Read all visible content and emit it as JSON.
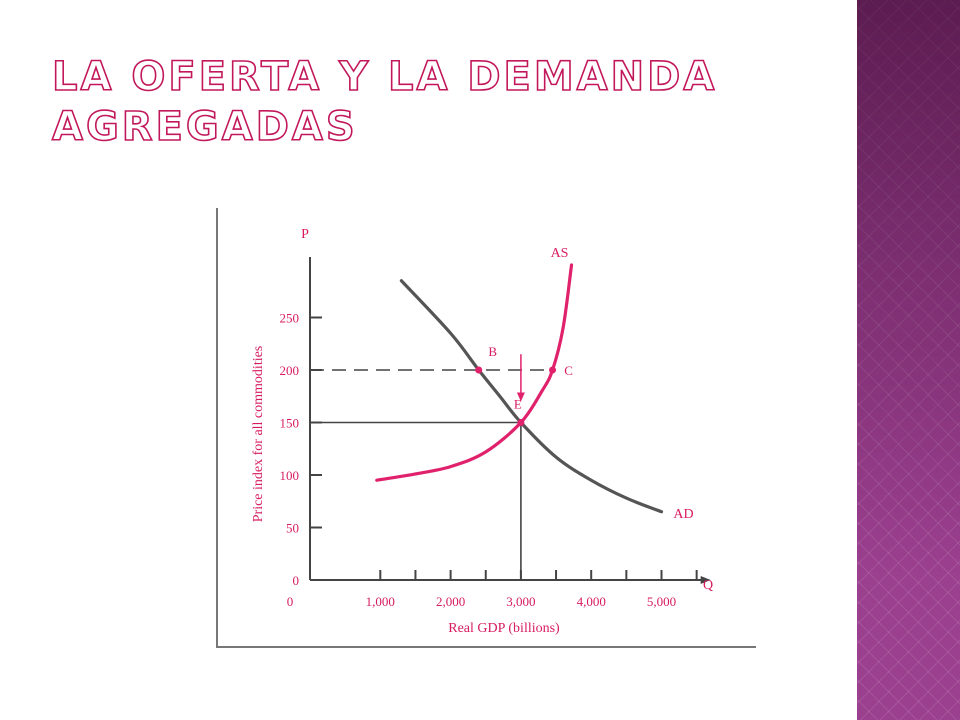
{
  "slide": {
    "title": "LA OFERTA Y LA DEMANDA AGREGADAS"
  },
  "colors": {
    "title_stroke": "#c2185b",
    "side_band": "#9b3f8f",
    "chart_text": "#d81b60",
    "as_curve": "#e0216b",
    "ad_curve": "#555555",
    "axis": "#444444"
  },
  "chart_data": {
    "type": "line",
    "title": "",
    "xlabel": "Real GDP (billions)",
    "ylabel": "Price index for all commodities",
    "x_axis_symbol": "Q",
    "y_axis_symbol": "P",
    "xlim": [
      0,
      5500
    ],
    "ylim": [
      0,
      300
    ],
    "x_ticks": [
      0,
      1000,
      2000,
      3000,
      4000,
      5000
    ],
    "x_tick_labels": [
      "0",
      "1,000",
      "2,000",
      "3,000",
      "4,000",
      "5,000"
    ],
    "x_minor_ticks": [
      1000,
      1500,
      2000,
      2500,
      3000,
      3500,
      4000,
      4500,
      5000,
      5500
    ],
    "y_ticks": [
      0,
      50,
      100,
      150,
      200,
      250
    ],
    "y_tick_labels": [
      "0",
      "50",
      "100",
      "150",
      "200",
      "250"
    ],
    "grid": false,
    "series": [
      {
        "name": "AS",
        "points": [
          [
            950,
            95
          ],
          [
            1500,
            101
          ],
          [
            2000,
            108
          ],
          [
            2500,
            122
          ],
          [
            3000,
            150
          ],
          [
            3300,
            180
          ],
          [
            3450,
            200
          ],
          [
            3600,
            240
          ],
          [
            3720,
            300
          ]
        ]
      },
      {
        "name": "AD",
        "points": [
          [
            1300,
            285
          ],
          [
            2000,
            235
          ],
          [
            2400,
            200
          ],
          [
            2700,
            175
          ],
          [
            3000,
            150
          ],
          [
            3500,
            117
          ],
          [
            4000,
            95
          ],
          [
            4500,
            78
          ],
          [
            5000,
            65
          ]
        ]
      }
    ],
    "points": [
      {
        "label": "B",
        "x": 2400,
        "y": 200
      },
      {
        "label": "C",
        "x": 3450,
        "y": 200
      },
      {
        "label": "E",
        "x": 3000,
        "y": 150
      }
    ],
    "reference_lines": [
      {
        "style": "dashed",
        "y": 200,
        "x_to": 3450
      },
      {
        "style": "solid",
        "y": 150,
        "x_to": 3000
      },
      {
        "style": "solid",
        "x": 3000,
        "y_to": 150
      }
    ],
    "annotations": [
      {
        "type": "arrow",
        "x": 3000,
        "y_from": 215,
        "y_to": 170
      }
    ]
  }
}
